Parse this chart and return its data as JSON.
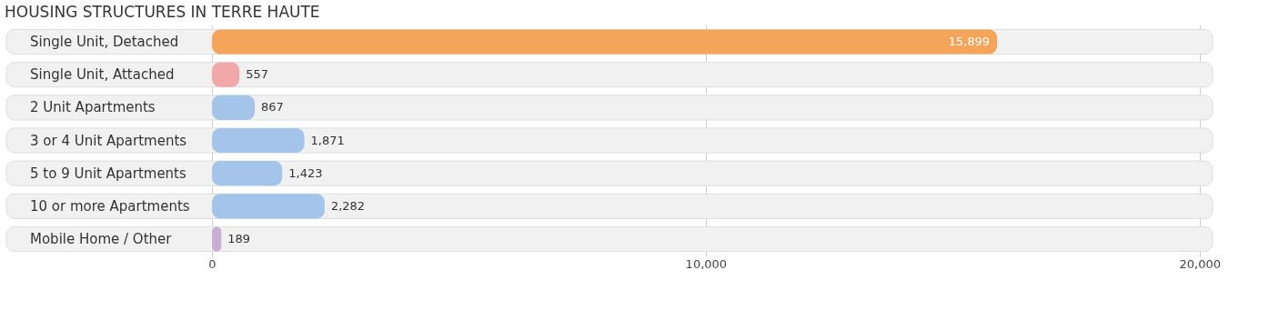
{
  "chart_data": {
    "type": "bar",
    "orientation": "horizontal",
    "title": "HOUSING STRUCTURES IN TERRE HAUTE",
    "categories": [
      "Single Unit, Detached",
      "Single Unit, Attached",
      "2 Unit Apartments",
      "3 or 4 Unit Apartments",
      "5 to 9 Unit Apartments",
      "10 or more Apartments",
      "Mobile Home / Other"
    ],
    "values": [
      15899,
      557,
      867,
      1871,
      1423,
      2282,
      189
    ],
    "value_labels": [
      "15,899",
      "557",
      "867",
      "1,871",
      "1,423",
      "2,282",
      "189"
    ],
    "colors": [
      "#f5a55a",
      "#f0a8a8",
      "#a4c4ea",
      "#a4c4ea",
      "#a4c4ea",
      "#a4c4ea",
      "#c9aed3"
    ],
    "xlim": [
      -4200,
      20300
    ],
    "xticks": [
      0,
      {
        "value": 10000,
        "label": "10,000"
      },
      {
        "value": 20000,
        "label": "20,000"
      }
    ],
    "grid": "x"
  }
}
